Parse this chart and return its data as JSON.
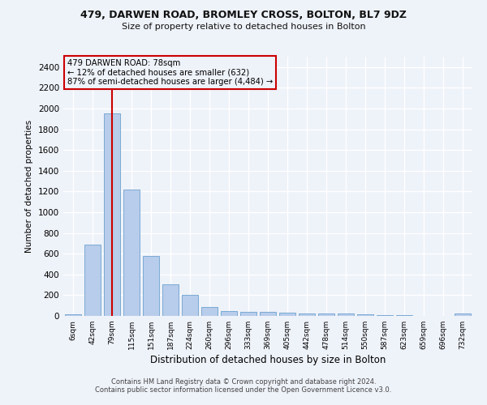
{
  "title1": "479, DARWEN ROAD, BROMLEY CROSS, BOLTON, BL7 9DZ",
  "title2": "Size of property relative to detached houses in Bolton",
  "xlabel": "Distribution of detached houses by size in Bolton",
  "ylabel": "Number of detached properties",
  "annotation_line1": "479 DARWEN ROAD: 78sqm",
  "annotation_line2": "← 12% of detached houses are smaller (632)",
  "annotation_line3": "87% of semi-detached houses are larger (4,484) →",
  "bar_color": "#b8cceb",
  "bar_edge_color": "#7aaad4",
  "highlight_color": "#cc0000",
  "categories": [
    "6sqm",
    "42sqm",
    "79sqm",
    "115sqm",
    "151sqm",
    "187sqm",
    "224sqm",
    "260sqm",
    "296sqm",
    "333sqm",
    "369sqm",
    "405sqm",
    "442sqm",
    "478sqm",
    "514sqm",
    "550sqm",
    "587sqm",
    "623sqm",
    "659sqm",
    "696sqm",
    "732sqm"
  ],
  "values": [
    15,
    690,
    1950,
    1220,
    575,
    305,
    200,
    85,
    47,
    38,
    38,
    32,
    20,
    20,
    20,
    15,
    5,
    5,
    3,
    3,
    20
  ],
  "highlight_bar_index": 2,
  "ylim": [
    0,
    2500
  ],
  "yticks": [
    0,
    200,
    400,
    600,
    800,
    1000,
    1200,
    1400,
    1600,
    1800,
    2000,
    2200,
    2400
  ],
  "footer1": "Contains HM Land Registry data © Crown copyright and database right 2024.",
  "footer2": "Contains public sector information licensed under the Open Government Licence v3.0.",
  "background_color": "#eef2f9",
  "grid_color": "#ffffff"
}
